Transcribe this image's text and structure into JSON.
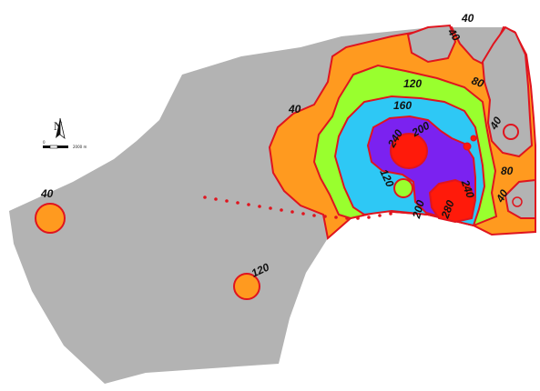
{
  "colors": {
    "background": "#ffffff",
    "land": "#b3b3b3",
    "band_40": "#ff9a1f",
    "band_80": "#ff9a1f",
    "band_120": "#99ff2e",
    "band_160": "#2ec8f5",
    "band_200": "#7b22f0",
    "band_240": "#ff1a0a",
    "contour_line": "#e0141e",
    "transect": "#e0141e"
  },
  "contour_labels": [
    "40",
    "40",
    "80",
    "120",
    "160",
    "200",
    "240",
    "120",
    "200",
    "240",
    "280",
    "40",
    "80",
    "40",
    "40",
    "40",
    "120"
  ],
  "north_arrow": {
    "icon": "north-arrow-icon",
    "label": "N"
  },
  "scale_bar": {
    "end_label": "2000 m",
    "start_label": "0"
  }
}
